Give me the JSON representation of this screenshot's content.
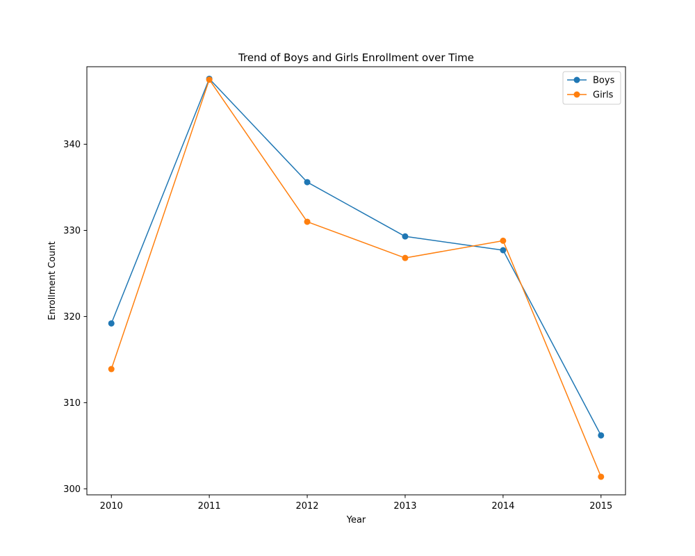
{
  "chart_data": {
    "type": "line",
    "title": "Trend of Boys and Girls Enrollment over Time",
    "xlabel": "Year",
    "ylabel": "Enrollment Count",
    "x": [
      2010,
      2011,
      2012,
      2013,
      2014,
      2015
    ],
    "x_ticks": [
      "2010",
      "2011",
      "2012",
      "2013",
      "2014",
      "2015"
    ],
    "xlim": [
      2009.75,
      2015.25
    ],
    "ylim": [
      299.3,
      349.0
    ],
    "y_ticks": [
      300,
      310,
      320,
      330,
      340
    ],
    "grid": false,
    "legend_position": "top-right",
    "series": [
      {
        "name": "Boys",
        "color": "#1f77b4",
        "marker": "circle",
        "values": [
          319.2,
          347.6,
          335.6,
          329.3,
          327.7,
          306.2
        ]
      },
      {
        "name": "Girls",
        "color": "#ff7f0e",
        "marker": "circle",
        "values": [
          313.9,
          347.5,
          331.0,
          326.8,
          328.8,
          301.4
        ]
      }
    ]
  }
}
